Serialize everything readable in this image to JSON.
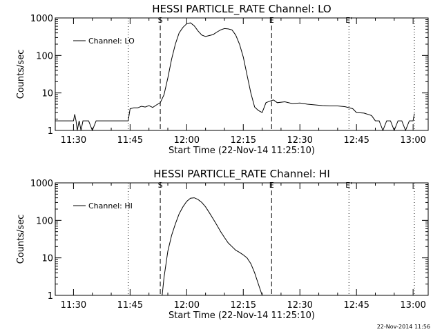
{
  "footer": {
    "timestamp": "22-Nov-2014 11:56"
  },
  "chart_data": [
    {
      "type": "line",
      "title": "HESSI PARTICLE_RATE Channel: LO",
      "xlabel": "Start Time (22-Nov-14 11:25:10)",
      "ylabel": "Counts/sec",
      "y_scale": "log",
      "ylim": [
        1,
        1000
      ],
      "y_ticks": [
        1,
        10,
        100,
        1000
      ],
      "y_tick_labels": [
        "1",
        "10",
        "100",
        "1000"
      ],
      "xlim": [
        "11:25:10",
        "13:04:00"
      ],
      "x_tick_labels": [
        "11:30",
        "11:45",
        "12:00",
        "12:15",
        "12:30",
        "12:45",
        "13:00"
      ],
      "grid": false,
      "legend": {
        "position": "top-left",
        "entries": [
          "Channel: LO"
        ]
      },
      "markers": [
        {
          "label": "S",
          "time": "11:53:00",
          "style": "dashed"
        },
        {
          "label": "E",
          "time": "12:22:30",
          "style": "dashed"
        },
        {
          "label": "",
          "time": "11:44:30",
          "style": "dotted"
        },
        {
          "label": "E'",
          "time": "12:43:00",
          "style": "dotted"
        },
        {
          "label": "",
          "time": "13:00:20",
          "style": "dotted"
        }
      ],
      "series": [
        {
          "name": "Channel: LO",
          "x": [
            "11:25:10",
            "11:30:00",
            "11:30:20",
            "11:30:40",
            "11:31:00",
            "11:31:30",
            "11:32:00",
            "11:32:30",
            "11:33:00",
            "11:34:00",
            "11:35:00",
            "11:36:00",
            "11:37:00",
            "11:38:00",
            "11:39:00",
            "11:40:00",
            "11:41:00",
            "11:42:00",
            "11:43:00",
            "11:44:00",
            "11:44:30",
            "11:45:00",
            "11:46:00",
            "11:47:00",
            "11:48:00",
            "11:49:00",
            "11:50:00",
            "11:51:00",
            "11:52:00",
            "11:53:00",
            "11:54:00",
            "11:55:00",
            "11:56:00",
            "11:57:00",
            "11:58:00",
            "11:59:00",
            "12:00:00",
            "12:01:00",
            "12:02:00",
            "12:03:00",
            "12:04:00",
            "12:05:00",
            "12:06:00",
            "12:07:00",
            "12:08:00",
            "12:09:00",
            "12:10:00",
            "12:11:00",
            "12:12:00",
            "12:13:00",
            "12:14:00",
            "12:15:00",
            "12:16:00",
            "12:17:00",
            "12:18:00",
            "12:19:00",
            "12:20:00",
            "12:21:00",
            "12:22:00",
            "12:23:00",
            "12:24:00",
            "12:26:00",
            "12:28:00",
            "12:30:00",
            "12:32:00",
            "12:34:00",
            "12:36:00",
            "12:38:00",
            "12:40:00",
            "12:42:00",
            "12:44:00",
            "12:45:00",
            "12:47:00",
            "12:49:00",
            "12:50:00",
            "12:51:00",
            "12:52:00",
            "12:53:00",
            "12:54:00",
            "12:55:00",
            "12:56:00",
            "12:57:00",
            "12:58:00",
            "12:59:00",
            "13:00:00",
            "13:00:20"
          ],
          "y": [
            1.8,
            1.8,
            2.7,
            1.8,
            1.0,
            1.8,
            1.0,
            1.8,
            1.8,
            1.8,
            1.0,
            1.8,
            1.8,
            1.8,
            1.8,
            1.8,
            1.8,
            1.8,
            1.8,
            1.8,
            1.8,
            3.8,
            4.0,
            4.0,
            4.4,
            4.2,
            4.6,
            4.1,
            4.8,
            5.5,
            9,
            25,
            80,
            200,
            400,
            560,
            700,
            740,
            620,
            450,
            350,
            320,
            340,
            360,
            420,
            480,
            520,
            510,
            480,
            350,
            200,
            90,
            30,
            10,
            4.2,
            3.4,
            3.0,
            5.5,
            6.0,
            6.5,
            5.5,
            5.8,
            5.2,
            5.4,
            5.0,
            4.8,
            4.6,
            4.5,
            4.5,
            4.3,
            3.8,
            3.0,
            2.9,
            2.5,
            1.8,
            1.8,
            1.0,
            1.8,
            1.8,
            1.0,
            1.8,
            1.8,
            1.0,
            1.8,
            1.8,
            2.8
          ]
        }
      ]
    },
    {
      "type": "line",
      "title": "HESSI PARTICLE_RATE Channel: HI",
      "xlabel": "Start Time (22-Nov-14 11:25:10)",
      "ylabel": "Counts/sec",
      "y_scale": "log",
      "ylim": [
        1,
        1000
      ],
      "y_ticks": [
        1,
        10,
        100,
        1000
      ],
      "y_tick_labels": [
        "1",
        "10",
        "100",
        "1000"
      ],
      "xlim": [
        "11:25:10",
        "13:04:00"
      ],
      "x_tick_labels": [
        "11:30",
        "11:45",
        "12:00",
        "12:15",
        "12:30",
        "12:45",
        "13:00"
      ],
      "grid": false,
      "legend": {
        "position": "top-left",
        "entries": [
          "Channel: HI"
        ]
      },
      "markers": [
        {
          "label": "S",
          "time": "11:53:00",
          "style": "dashed"
        },
        {
          "label": "E",
          "time": "12:22:30",
          "style": "dashed"
        },
        {
          "label": "",
          "time": "11:44:30",
          "style": "dotted"
        },
        {
          "label": "E'",
          "time": "12:43:00",
          "style": "dotted"
        },
        {
          "label": "",
          "time": "13:00:20",
          "style": "dotted"
        }
      ],
      "series": [
        {
          "name": "Channel: HI",
          "x": [
            "11:53:30",
            "11:54:00",
            "11:55:00",
            "11:56:00",
            "11:57:00",
            "11:58:00",
            "11:59:00",
            "12:00:00",
            "12:01:00",
            "12:02:00",
            "12:03:00",
            "12:04:00",
            "12:05:00",
            "12:06:00",
            "12:07:00",
            "12:08:00",
            "12:09:00",
            "12:10:00",
            "12:11:00",
            "12:12:00",
            "12:13:00",
            "12:14:00",
            "12:15:00",
            "12:16:00",
            "12:17:00",
            "12:18:00",
            "12:19:00",
            "12:20:00"
          ],
          "y": [
            1.0,
            3,
            15,
            40,
            80,
            150,
            230,
            320,
            390,
            400,
            360,
            300,
            230,
            160,
            110,
            75,
            50,
            35,
            25,
            20,
            16,
            14,
            12,
            10,
            7,
            4,
            2,
            1.0
          ]
        }
      ]
    }
  ]
}
